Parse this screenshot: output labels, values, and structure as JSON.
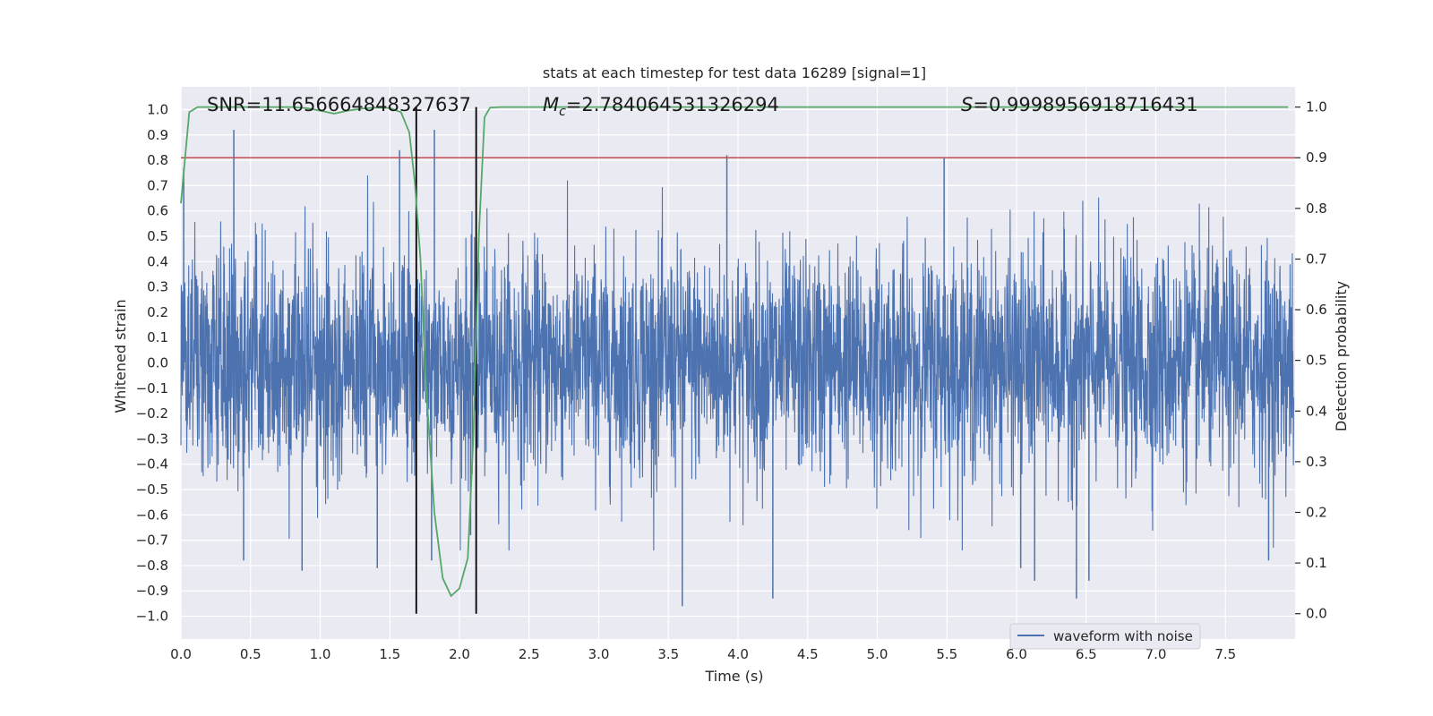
{
  "chart_data": {
    "type": "line",
    "title": "stats at each timestep for test data 16289 [signal=1]",
    "xlabel": "Time (s)",
    "ylabel": "Whitened strain",
    "y2label": "Detection probability",
    "xlim": [
      0.0,
      8.0
    ],
    "ylim": [
      -1.09,
      1.09
    ],
    "y2lim": [
      -0.05,
      1.04
    ],
    "xticks": [
      "0.0",
      "0.5",
      "1.0",
      "1.5",
      "2.0",
      "2.5",
      "3.0",
      "3.5",
      "4.0",
      "4.5",
      "5.0",
      "5.5",
      "6.0",
      "6.5",
      "7.0",
      "7.5"
    ],
    "yticks": [
      "−1.0",
      "−0.9",
      "−0.8",
      "−0.7",
      "−0.6",
      "−0.5",
      "−0.4",
      "−0.3",
      "−0.2",
      "−0.1",
      "0.0",
      "0.1",
      "0.2",
      "0.3",
      "0.4",
      "0.5",
      "0.6",
      "0.7",
      "0.8",
      "0.9",
      "1.0"
    ],
    "y2ticks": [
      "0.0",
      "0.1",
      "0.2",
      "0.3",
      "0.4",
      "0.5",
      "0.6",
      "0.7",
      "0.8",
      "0.9",
      "1.0"
    ],
    "annotations": {
      "snr": "SNR=11.656664848327637",
      "mc_symbol": "M",
      "mc_sub": "c",
      "mc_value": "=2.784064531326294",
      "s_symbol": "S",
      "s_value": "=0.9998956918716431"
    },
    "legend": {
      "label": "waveform with noise",
      "location": "lower right"
    },
    "colors": {
      "waveform": "#4c72b0",
      "probability": "#55a868",
      "threshold": "#c44e52",
      "markers": "#000000",
      "background": "#eaeaf2",
      "grid": "#ffffff"
    },
    "series": [
      {
        "name": "waveform with noise",
        "axis": "left",
        "description_stats": {
          "t_start": 0.0,
          "t_end": 7.99,
          "sigma": 0.22
        },
        "peaks": [
          {
            "t": 0.02,
            "v": 0.77
          },
          {
            "t": 0.38,
            "v": 0.92
          },
          {
            "t": 0.45,
            "v": -0.78
          },
          {
            "t": 0.87,
            "v": -0.82
          },
          {
            "t": 1.41,
            "v": -0.81
          },
          {
            "t": 1.57,
            "v": 0.84
          },
          {
            "t": 1.82,
            "v": 0.92
          },
          {
            "t": 1.8,
            "v": -0.78
          },
          {
            "t": 2.08,
            "v": -0.68
          },
          {
            "t": 3.6,
            "v": -0.96
          },
          {
            "t": 3.92,
            "v": 0.82
          },
          {
            "t": 4.25,
            "v": -0.93
          },
          {
            "t": 5.48,
            "v": 0.81
          },
          {
            "t": 6.13,
            "v": -0.86
          },
          {
            "t": 6.43,
            "v": -0.93
          },
          {
            "t": 6.52,
            "v": -0.86
          },
          {
            "t": 6.03,
            "v": -0.81
          },
          {
            "t": 7.81,
            "v": -0.78
          }
        ]
      },
      {
        "name": "detection probability",
        "axis": "right",
        "t": [
          0.0,
          0.06,
          0.12,
          0.2,
          0.3,
          0.4,
          0.5,
          0.6,
          0.7,
          0.8,
          0.9,
          1.0,
          1.1,
          1.2,
          1.3,
          1.4,
          1.5,
          1.58,
          1.64,
          1.68,
          1.72,
          1.76,
          1.82,
          1.88,
          1.94,
          2.0,
          2.06,
          2.1,
          2.14,
          2.18,
          2.22,
          2.3,
          3.0,
          4.0,
          5.0,
          6.0,
          7.0,
          7.5,
          7.95
        ],
        "values": [
          0.81,
          0.99,
          1.0,
          1.0,
          1.0,
          1.0,
          1.0,
          1.0,
          1.0,
          1.0,
          0.998,
          0.993,
          0.987,
          0.993,
          0.997,
          0.999,
          0.998,
          0.99,
          0.95,
          0.85,
          0.7,
          0.45,
          0.2,
          0.07,
          0.035,
          0.05,
          0.11,
          0.35,
          0.75,
          0.98,
          0.999,
          1.0,
          1.0,
          1.0,
          1.0,
          1.0,
          1.0,
          1.0,
          1.0
        ]
      },
      {
        "name": "threshold",
        "axis": "right",
        "value": 0.9
      }
    ],
    "markers_t": [
      1.69,
      2.12
    ]
  }
}
